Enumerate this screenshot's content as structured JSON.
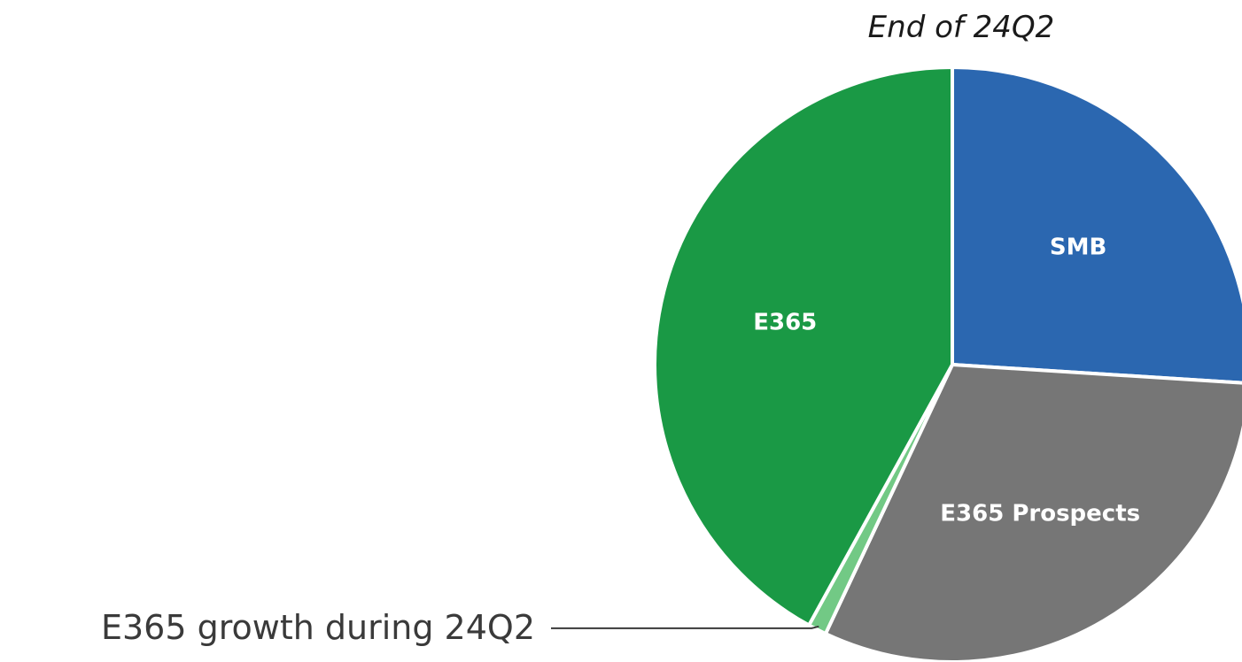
{
  "chart_data": {
    "type": "pie",
    "title": "End of 24Q2",
    "slices": [
      {
        "label": "SMB",
        "value": 26.0,
        "color": "#2b67b0",
        "show_label": true
      },
      {
        "label": "E365 Prospects",
        "value": 31.0,
        "color": "#767676",
        "show_label": true
      },
      {
        "label": "E365 growth during 24Q2",
        "value": 1.0,
        "color": "#72c985",
        "show_label": false,
        "callout": true
      },
      {
        "label": "E365",
        "value": 42.0,
        "color": "#1a9945",
        "show_label": true
      }
    ],
    "start_angle_deg": 0,
    "direction": "clockwise",
    "legend": "none"
  }
}
